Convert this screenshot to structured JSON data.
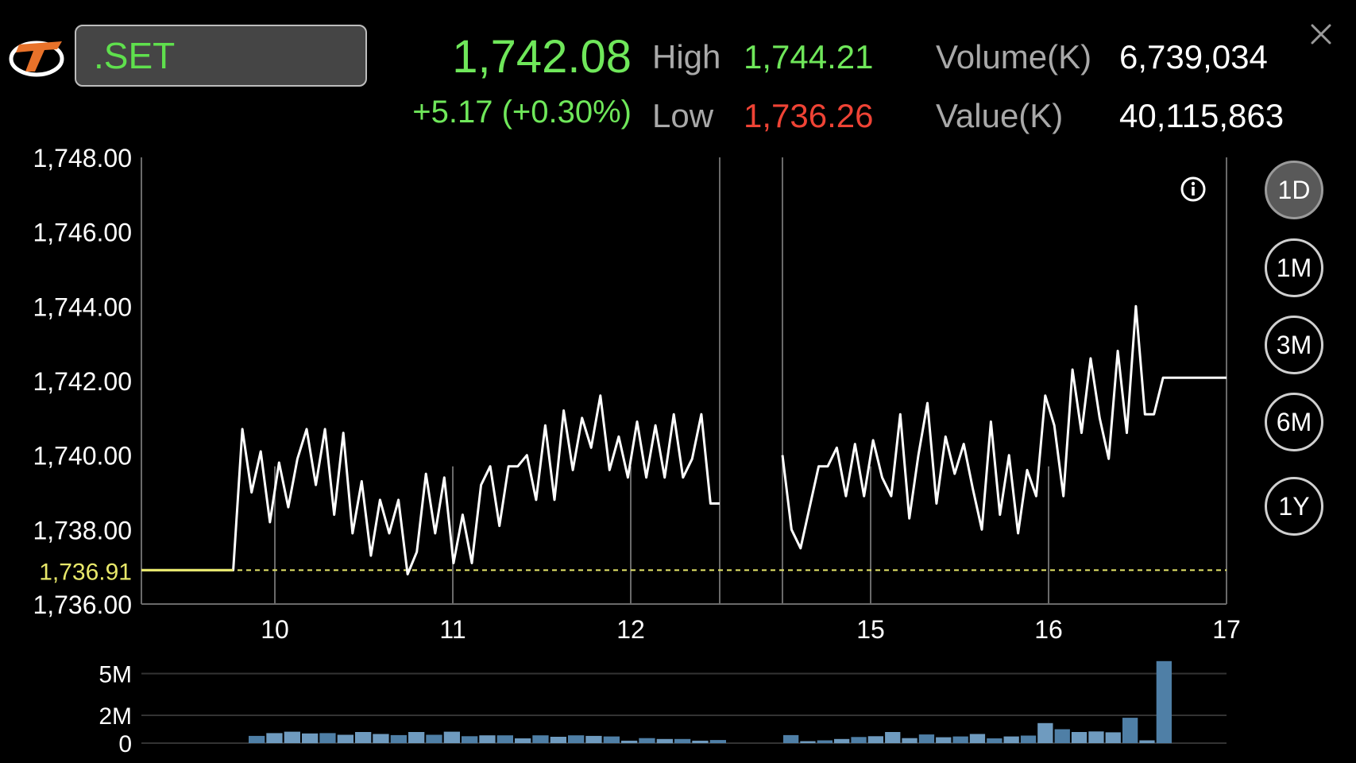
{
  "header": {
    "symbol": ".SET",
    "last_price": "1,742.08",
    "change": "+5.17 (+0.30%)",
    "high_label": "High",
    "high_value": "1,744.21",
    "low_label": "Low",
    "low_value": "1,736.26",
    "volume_label": "Volume(K)",
    "volume_value": "6,739,034",
    "value_label": "Value(K)",
    "value_value": "40,115,863"
  },
  "range_buttons": {
    "d1": "1D",
    "m1": "1M",
    "m3": "3M",
    "m6": "6M",
    "y1": "1Y",
    "active": "1D"
  },
  "colors": {
    "up": "#6fe75a",
    "down": "#ef4335",
    "line": "#ffffff",
    "reference": "#e8e86a",
    "volume_bar": "#4f7fa6",
    "volume_bar_light": "#6f9bbf",
    "grid": "#6a6a6a"
  },
  "icons": {
    "logo": "brand-logo",
    "close": "close-icon",
    "info": "info-icon"
  },
  "chart_data": [
    {
      "type": "line",
      "title": "",
      "ylim": [
        1736,
        1748
      ],
      "y_ticks": [
        "1,748.00",
        "1,746.00",
        "1,744.00",
        "1,742.00",
        "1,740.00",
        "1,738.00",
        "1,736.00"
      ],
      "x_ticks": [
        "10",
        "11",
        "12",
        "15",
        "16",
        "17"
      ],
      "reference_line": {
        "value": 1736.91,
        "label": "1,736.91"
      },
      "grid": true,
      "sessions": [
        {
          "values": [
            1736.91,
            1736.91,
            1736.91,
            1736.91,
            1736.91,
            1736.91,
            1736.91,
            1736.91,
            1736.91,
            1736.91,
            1736.91,
            1740.7,
            1739.0,
            1740.1,
            1738.2,
            1739.8,
            1738.6,
            1739.9,
            1740.7,
            1739.2,
            1740.7,
            1738.4,
            1740.6,
            1737.9,
            1739.3,
            1737.3,
            1738.8,
            1737.9,
            1738.8,
            1736.8,
            1737.4,
            1739.5,
            1737.9,
            1739.4,
            1737.1,
            1738.4,
            1737.1,
            1739.2,
            1739.7,
            1738.1,
            1739.7,
            1739.7,
            1740.0,
            1738.8,
            1740.8,
            1738.8,
            1741.2,
            1739.6,
            1741.0,
            1740.2,
            1741.6,
            1739.6,
            1740.5,
            1739.4,
            1740.9,
            1739.4,
            1740.8,
            1739.4,
            1741.1,
            1739.4,
            1739.9,
            1741.1,
            1738.7,
            1738.7
          ]
        },
        {
          "values": [
            1740.0,
            1738.0,
            1737.5,
            1738.6,
            1739.7,
            1739.7,
            1740.2,
            1738.9,
            1740.3,
            1738.9,
            1740.4,
            1739.4,
            1738.9,
            1741.1,
            1738.3,
            1740.0,
            1741.4,
            1738.7,
            1740.5,
            1739.5,
            1740.3,
            1739.1,
            1738.0,
            1740.9,
            1738.4,
            1740.0,
            1737.9,
            1739.6,
            1738.9,
            1741.6,
            1740.8,
            1738.9,
            1742.3,
            1740.6,
            1742.6,
            1741.0,
            1739.9,
            1742.8,
            1740.6,
            1744.0,
            1741.1,
            1741.1,
            1742.08,
            1742.08,
            1742.08,
            1742.08,
            1742.08,
            1742.08,
            1742.08,
            1742.08
          ]
        }
      ]
    },
    {
      "type": "bar",
      "title": "",
      "ylim": [
        0,
        6
      ],
      "y_ticks": [
        "5M",
        "2M",
        "0"
      ],
      "series": [
        {
          "values": [
            0.52,
            0.72,
            0.82,
            0.7,
            0.72,
            0.6,
            0.8,
            0.66,
            0.58,
            0.8,
            0.6,
            0.82,
            0.5,
            0.56,
            0.56,
            0.34,
            0.56,
            0.46,
            0.56,
            0.52,
            0.48,
            0.18,
            0.36,
            0.3,
            0.3,
            0.18,
            0.22
          ]
        },
        {
          "values": [
            0.58,
            0.14,
            0.2,
            0.3,
            0.44,
            0.5,
            0.8,
            0.36,
            0.62,
            0.42,
            0.48,
            0.66,
            0.34,
            0.48,
            0.54,
            1.44,
            1.0,
            0.8,
            0.84,
            0.78,
            1.82,
            0.2,
            5.9
          ]
        }
      ]
    }
  ]
}
